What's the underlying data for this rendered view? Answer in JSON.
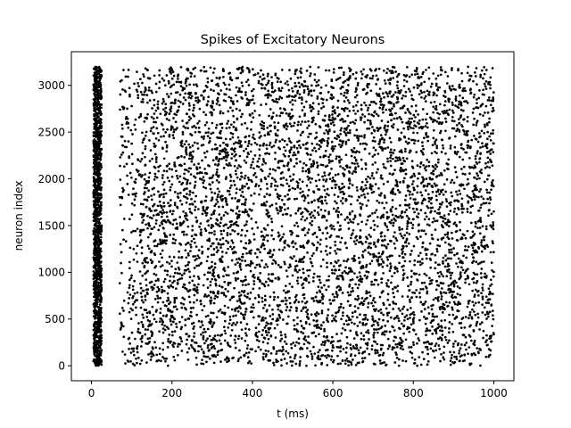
{
  "chart_data": {
    "type": "scatter",
    "title": "Spikes of Excitatory Neurons",
    "xlabel": "t (ms)",
    "ylabel": "neuron index",
    "xlim": [
      -50,
      1050
    ],
    "ylim": [
      -160,
      3360
    ],
    "xticks": [
      0,
      200,
      400,
      600,
      800,
      1000
    ],
    "yticks": [
      0,
      500,
      1000,
      1500,
      2000,
      2500,
      3000
    ],
    "grid": false,
    "legend": "none",
    "marker_color": "#000000",
    "series": [
      {
        "neuron_count": 3200,
        "t_range": [
          0,
          1000
        ],
        "initial_burst": {
          "t": [
            5,
            25
          ]
        },
        "quiet_gap": {
          "t": [
            25,
            70
          ]
        },
        "sparse_onset": {
          "t": [
            70,
            120
          ]
        },
        "sustained_activity": {
          "t": [
            120,
            1000
          ]
        },
        "x": [
          5,
          8,
          10,
          12,
          14,
          16,
          18,
          20,
          22,
          25,
          7,
          11,
          15,
          19,
          23,
          80,
          95,
          110,
          150,
          200,
          250,
          300,
          350,
          400,
          450,
          500,
          550,
          600,
          650,
          700,
          750,
          800,
          850,
          900,
          950,
          1000
        ],
        "y": [
          50,
          400,
          800,
          1200,
          1600,
          2000,
          2400,
          2800,
          3150,
          1500,
          200,
          1000,
          1800,
          2600,
          3000,
          1350,
          2900,
          700,
          1100,
          2100,
          450,
          3050,
          1250,
          2700,
          600,
          1900,
          350,
          2300,
          800,
          3100,
          1500,
          250,
          2050,
          900,
          2750,
          1650
        ]
      }
    ]
  }
}
